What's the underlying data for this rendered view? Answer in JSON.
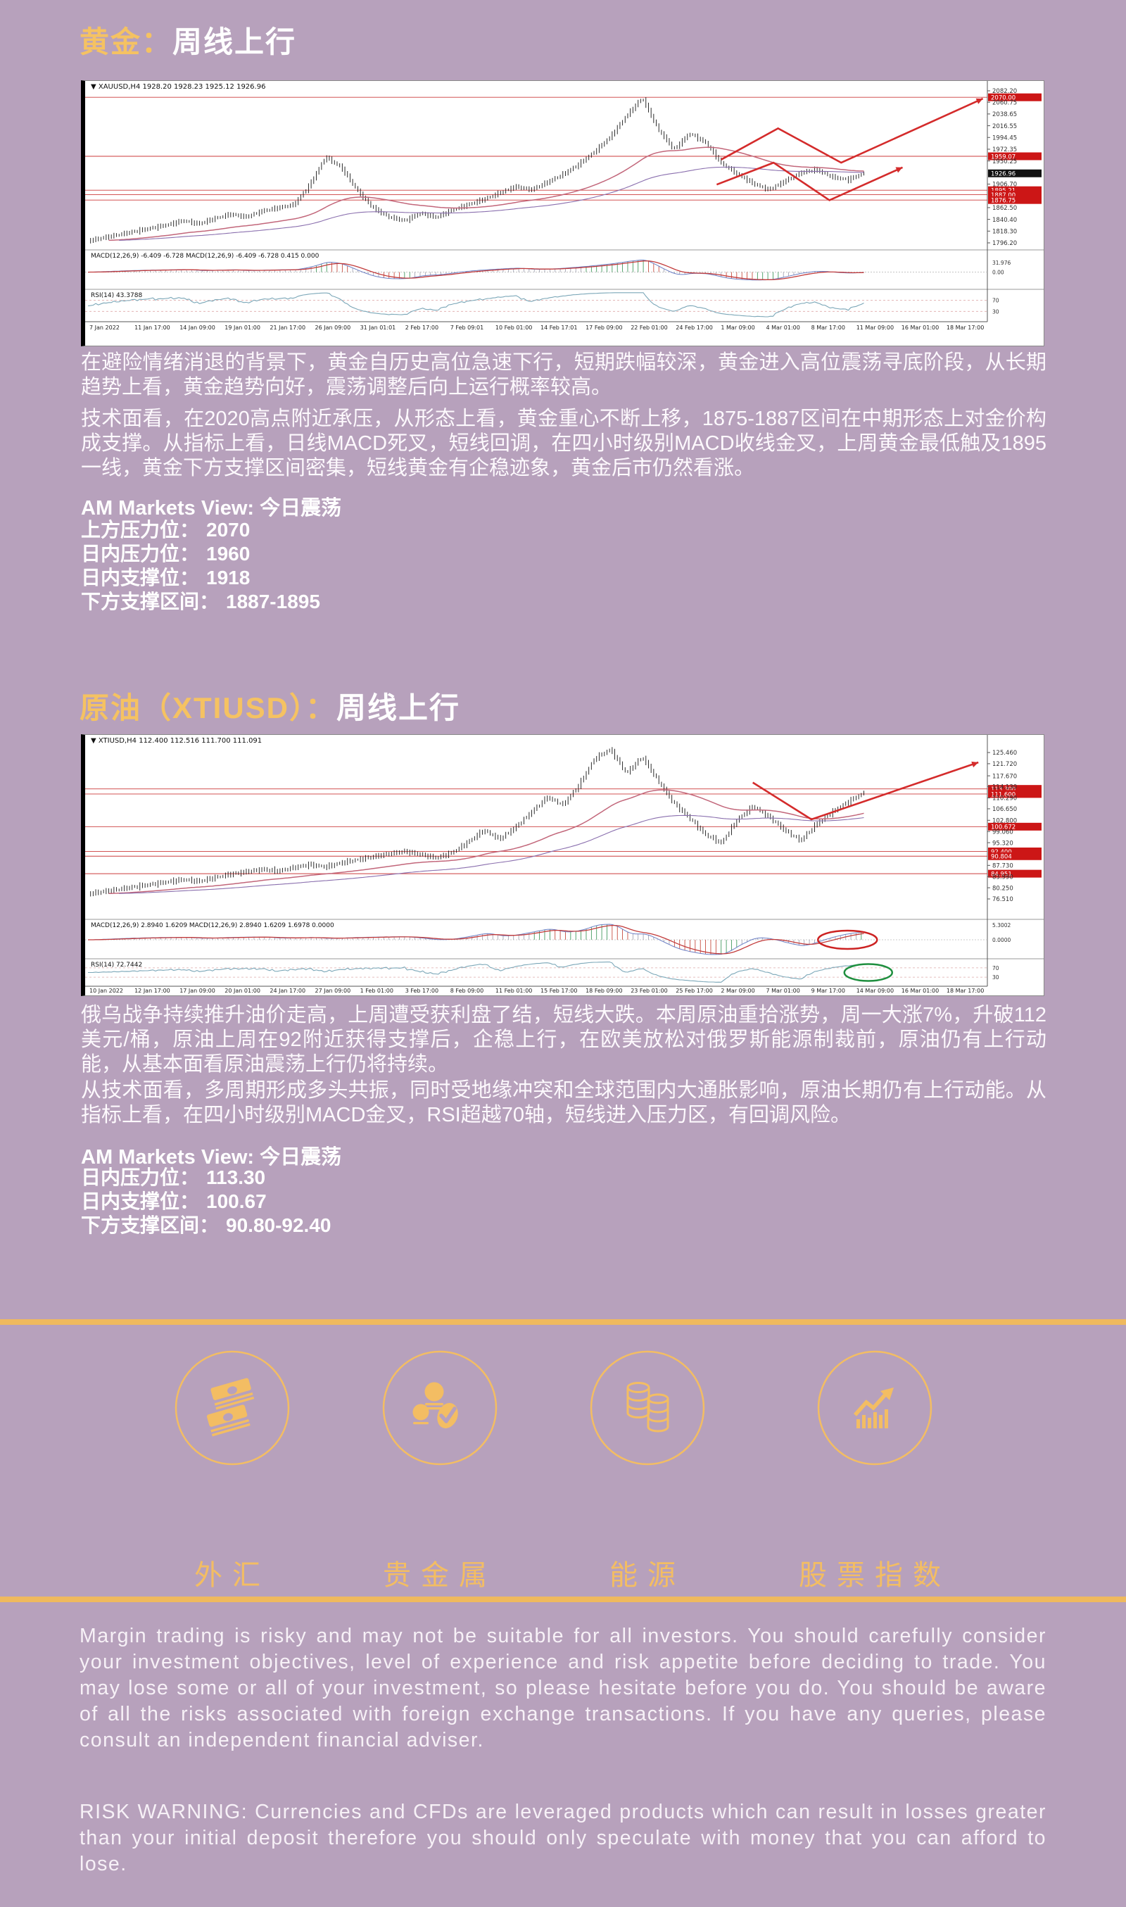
{
  "page": {
    "background": "#b7a1bc",
    "accent": "#f3bd63",
    "heading_accent": "#f5c262",
    "text": "#ffffff"
  },
  "gold": {
    "title_highlight": "黄金：",
    "title_rest": "周线上行",
    "para1": "在避险情绪消退的背景下，黄金自历史高位急速下行，短期跌幅较深，黄金进入高位震荡寻底阶段，从长期趋势上看，黄金趋势向好，震荡调整后向上运行概率较高。",
    "para2": "技术面看，在2020高点附近承压，从形态上看，黄金重心不断上移，1875-1887区间在中期形态上对金价构成支撑。从指标上看，日线MACD死叉，短线回调，在四小时级别MACD收线金叉，上周黄金最低触及1895一线，黄金下方支撑区间密集，短线黄金有企稳迹象，黄金后市仍然看涨。",
    "view": "AM Markets View: 今日震荡",
    "levels": [
      {
        "label": "上方压力位：",
        "value": "2070"
      },
      {
        "label": "日内压力位：",
        "value": "1960"
      },
      {
        "label": "日内支撑位：",
        "value": "1918"
      },
      {
        "label": "下方支撑区间：",
        "value": "1887-1895"
      }
    ]
  },
  "oil": {
    "title_highlight": "原油（XTIUSD）：",
    "title_rest": "周线上行",
    "para1": "俄乌战争持续推升油价走高，上周遭受获利盘了结，短线大跌。本周原油重拾涨势，周一大涨7%，升破112美元/桶，原油上周在92附近获得支撑后，企稳上行，在欧美放松对俄罗斯能源制裁前，原油仍有上行动能，从基本面看原油震荡上行仍将持续。",
    "para2": "从技术面看，多周期形成多头共振，同时受地缘冲突和全球范围内大通胀影响，原油长期仍有上行动能。从指标上看，在四小时级别MACD金叉，RSI超越70轴，短线进入压力区，有回调风险。",
    "view": "AM Markets View: 今日震荡",
    "levels": [
      {
        "label": "日内压力位：",
        "value": "113.30"
      },
      {
        "label": "日内支撑位：",
        "value": "100.67"
      },
      {
        "label": "下方支撑区间：",
        "value": "90.80-92.40"
      }
    ]
  },
  "categories": {
    "items": [
      {
        "icon": "banknotes-icon",
        "label": "外汇"
      },
      {
        "icon": "coins-check-icon",
        "label": "贵金属"
      },
      {
        "icon": "coin-stacks-icon",
        "label": "能源"
      },
      {
        "icon": "trend-chart-icon",
        "label": "股票指数"
      }
    ]
  },
  "disclaimer": {
    "para1": "Margin trading is risky and may not be suitable for all investors. You should carefully consider your investment objectives, level of experience and risk appetite before deciding to trade. You may lose some or all of your investment, so please hesitate before you do. You should be aware of all the risks associated with foreign exchange transactions. If you have any queries, please consult an independent financial adviser.",
    "para2": "RISK WARNING: Currencies and CFDs are leveraged products which can result in losses greater than your initial deposit therefore you should only speculate with money that you can afford to lose."
  },
  "chart_data": [
    {
      "type": "candlestick",
      "title": "XAUUSD H4",
      "symbol_header": "XAUUSD,H4 1928.20 1928.23 1925.12 1926.96",
      "price_axis_ticks": [
        "2082.20",
        "2060.75",
        "2038.65",
        "2016.55",
        "1994.45",
        "1972.35",
        "1950.25",
        "1906.70",
        "1862.50",
        "1840.40",
        "1818.30",
        "1796.20"
      ],
      "level_badges": [
        {
          "value": "2070.00",
          "color": "red"
        },
        {
          "value": "1959.07",
          "color": "red"
        },
        {
          "value": "1926.96",
          "color": "black"
        },
        {
          "value": "1895.21",
          "color": "red"
        },
        {
          "value": "1887.00",
          "color": "red"
        },
        {
          "value": "1876.75",
          "color": "red"
        }
      ],
      "time_axis": [
        "7 Jan 2022",
        "11 Jan 17:00",
        "14 Jan 09:00",
        "19 Jan 01:00",
        "21 Jan 17:00",
        "26 Jan 09:00",
        "31 Jan 01:01",
        "2 Feb 17:00",
        "7 Feb 09:01",
        "10 Feb 01:00",
        "14 Feb 17:01",
        "17 Feb 09:00",
        "22 Feb 01:00",
        "24 Feb 17:00",
        "1 Mar 09:00",
        "4 Mar 01:00",
        "8 Mar 17:00",
        "11 Mar 09:00",
        "16 Mar 01:00",
        "18 Mar 17:00"
      ],
      "macd_label": "MACD(12,26,9) -6.409 -6.728  MACD(12,26,9) -6.409 -6.728 0.415 0.000",
      "macd_axis": [
        "31.976",
        "0.00"
      ],
      "rsi_label": "RSI(14) 43.3788",
      "rsi_axis": [
        "70",
        "30"
      ],
      "ylim": [
        1796.2,
        2082.2
      ],
      "price_path": [
        1800,
        1806,
        1812,
        1818,
        1824,
        1830,
        1838,
        1832,
        1842,
        1850,
        1845,
        1856,
        1862,
        1868,
        1905,
        1958,
        1938,
        1895,
        1862,
        1845,
        1838,
        1852,
        1844,
        1858,
        1868,
        1878,
        1890,
        1902,
        1896,
        1910,
        1925,
        1944,
        1968,
        1996,
        2035,
        2069,
        2010,
        1972,
        2002,
        1985,
        1946,
        1926,
        1908,
        1896,
        1912,
        1928,
        1934,
        1920,
        1915,
        1927
      ],
      "annotation": "red zigzag projection arrows pointing up-right"
    },
    {
      "type": "candlestick",
      "title": "XTIUSD H4",
      "symbol_header": "XTIUSD,H4 112.400 112.516 111.700 111.091",
      "price_axis_ticks": [
        "125.460",
        "121.720",
        "117.670",
        "114.130",
        "110.290",
        "106.650",
        "102.800",
        "99.060",
        "95.320",
        "87.730",
        "83.990",
        "80.250",
        "76.510"
      ],
      "level_badges": [
        {
          "value": "113.300",
          "color": "red"
        },
        {
          "value": "111.600",
          "color": "red"
        },
        {
          "value": "100.672",
          "color": "red"
        },
        {
          "value": "92.400",
          "color": "red"
        },
        {
          "value": "90.804",
          "color": "red"
        },
        {
          "value": "84.951",
          "color": "red"
        }
      ],
      "time_axis": [
        "10 Jan 2022",
        "12 Jan 17:00",
        "17 Jan 09:00",
        "20 Jan 01:00",
        "24 Jan 17:00",
        "27 Jan 09:00",
        "1 Feb 01:00",
        "3 Feb 17:00",
        "8 Feb 09:00",
        "11 Feb 01:00",
        "15 Feb 17:00",
        "18 Feb 09:00",
        "23 Feb 01:00",
        "25 Feb 17:00",
        "2 Mar 09:00",
        "7 Mar 01:00",
        "9 Mar 17:00",
        "14 Mar 09:00",
        "16 Mar 01:00",
        "18 Mar 17:00"
      ],
      "macd_label": "MACD(12,26,9) 2.8940 1.6209  MACD(12,26,9) 2.8940 1.6209 1.6978 0.0000",
      "macd_axis": [
        "5.3002",
        "0.0000"
      ],
      "rsi_label": "RSI(14) 72.7442",
      "rsi_axis": [
        "70",
        "30"
      ],
      "ylim": [
        76.51,
        125.46
      ],
      "price_path": [
        78.2,
        79.0,
        79.8,
        80.6,
        81.4,
        82.2,
        83.0,
        82.4,
        83.6,
        84.8,
        85.6,
        86.4,
        85.8,
        87.0,
        88.0,
        87.2,
        88.6,
        89.6,
        90.6,
        91.6,
        92.4,
        91.4,
        90.2,
        92.0,
        95.5,
        99.5,
        96.5,
        100.5,
        105.5,
        110.5,
        108.0,
        114.5,
        123.5,
        126.5,
        118.5,
        124.0,
        116.0,
        108.5,
        103.5,
        98.0,
        95.2,
        103.0,
        107.5,
        104.0,
        99.5,
        96.0,
        101.5,
        105.5,
        109.0,
        112.0
      ],
      "annotation": "red zigzag projection arrow up-right; red circle on MACD cross; green circle on RSI above 70"
    }
  ]
}
